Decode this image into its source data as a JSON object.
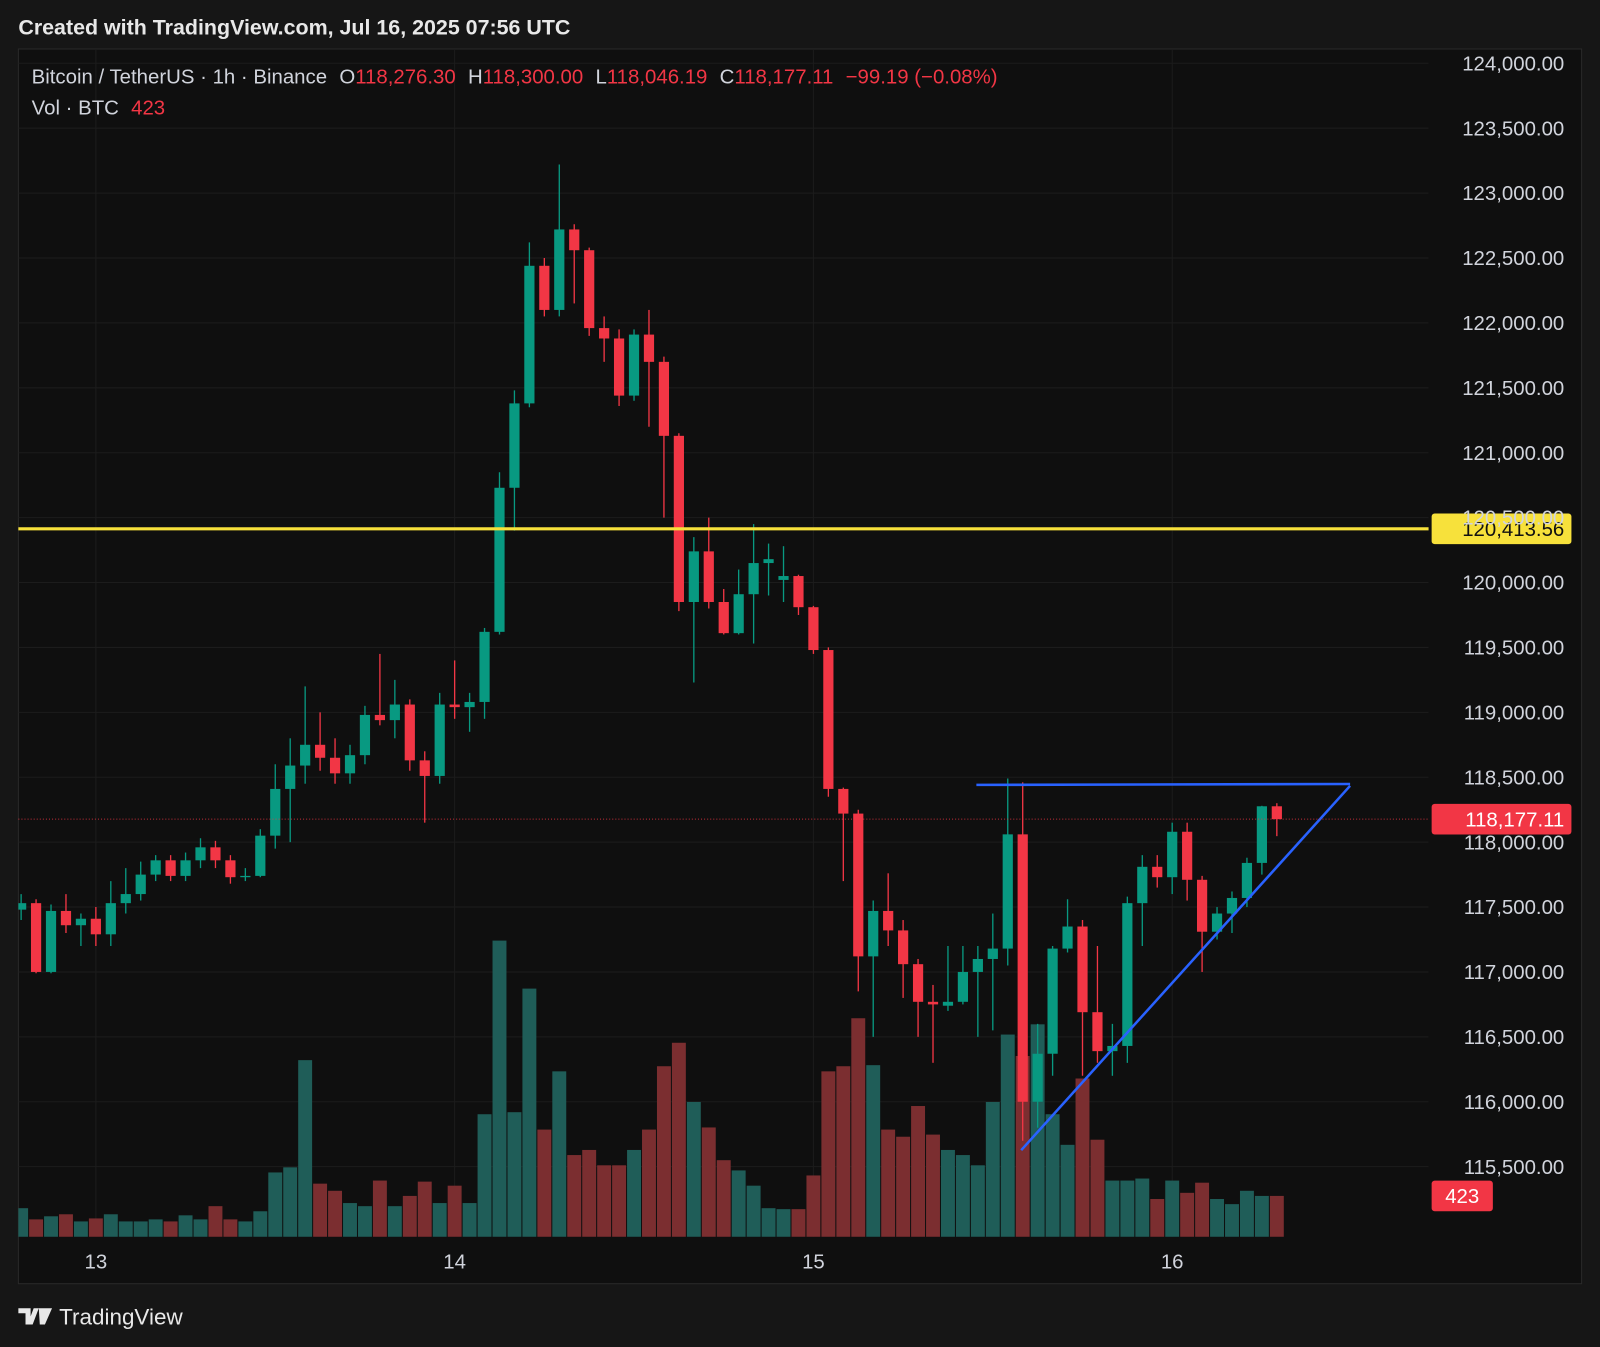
{
  "header": "Created with TradingView.com, Jul 16, 2025 07:56 UTC",
  "footer": "TradingView",
  "chart_data": {
    "type": "candlestick",
    "title": "Bitcoin / TetherUS · 1h · Binance",
    "legend": {
      "open_key": "O",
      "open": "118,276.30",
      "high_key": "H",
      "high": "118,300.00",
      "low_key": "L",
      "low": "118,046.19",
      "close_key": "C",
      "close": "118,177.11",
      "change": "−99.19 (−0.08%)",
      "volume_key": "Vol · BTC",
      "volume": "423"
    },
    "categories": [
      null,
      null,
      null,
      null,
      null,
      "13",
      null,
      null,
      null,
      null,
      null,
      null,
      null,
      null,
      null,
      null,
      null,
      null,
      null,
      null,
      null,
      null,
      null,
      null,
      null,
      null,
      null,
      null,
      null,
      "14",
      null,
      null,
      null,
      null,
      null,
      null,
      null,
      null,
      null,
      null,
      null,
      null,
      null,
      null,
      null,
      null,
      null,
      null,
      null,
      null,
      null,
      null,
      null,
      "15",
      null,
      null,
      null,
      null,
      null,
      null,
      null,
      null,
      null,
      null,
      null,
      null,
      null,
      null,
      null,
      null,
      null,
      null,
      null,
      null,
      null,
      null,
      null,
      "16",
      null,
      null,
      null,
      null,
      null,
      null,
      null
    ],
    "open": [
      117480,
      117530,
      117000,
      117470,
      117360,
      117410,
      117290,
      117530,
      117600,
      117750,
      117860,
      117740,
      117860,
      117960,
      117860,
      117730,
      117740,
      118050,
      118410,
      118590,
      118750,
      118650,
      118530,
      118670,
      118980,
      118940,
      119060,
      118630,
      118510,
      119060,
      119040,
      119080,
      119620,
      120730,
      121380,
      122440,
      122100,
      122720,
      122560,
      121960,
      121880,
      121440,
      121910,
      121700,
      121130,
      119850,
      120240,
      119850,
      119610,
      119910,
      120150,
      120020,
      120050,
      119810,
      119480,
      118410,
      118220,
      117120,
      117470,
      117320,
      117060,
      116770,
      116740,
      116770,
      117000,
      117100,
      117180,
      118060,
      116000,
      116370,
      117180,
      117350,
      116690,
      116390,
      116430,
      117530,
      117810,
      117730,
      118080,
      117710,
      117310,
      117450,
      117570,
      117840,
      118276.3
    ],
    "high": [
      117600,
      117560,
      117520,
      117600,
      117450,
      117500,
      117700,
      117800,
      117850,
      117900,
      117900,
      117920,
      118030,
      118010,
      117900,
      117800,
      118100,
      118600,
      118800,
      119200,
      119000,
      118800,
      118750,
      119050,
      119450,
      119250,
      119100,
      118700,
      119150,
      119400,
      119150,
      119650,
      120850,
      121480,
      122620,
      122500,
      123220,
      122760,
      122580,
      122050,
      121950,
      121950,
      122100,
      121740,
      121150,
      120350,
      120500,
      119950,
      120100,
      120450,
      120300,
      120280,
      120060,
      119820,
      119500,
      118420,
      118250,
      117550,
      117760,
      117400,
      117100,
      116900,
      117200,
      117200,
      117200,
      117450,
      118490,
      118460,
      116600,
      117200,
      117560,
      117400,
      117200,
      116600,
      117580,
      117900,
      117900,
      118150,
      118150,
      117740,
      117500,
      117620,
      117880,
      118280,
      118300
    ],
    "low": [
      117400,
      116990,
      116990,
      117300,
      117200,
      117200,
      117200,
      117450,
      117550,
      117700,
      117700,
      117700,
      117800,
      117800,
      117680,
      117700,
      117730,
      117950,
      118000,
      118450,
      118550,
      118450,
      118450,
      118600,
      118900,
      118800,
      118550,
      118150,
      118450,
      118950,
      118850,
      118950,
      119600,
      120400,
      121350,
      122050,
      122050,
      122150,
      121900,
      121700,
      121360,
      121400,
      121200,
      120500,
      119780,
      119230,
      119800,
      119600,
      119600,
      119530,
      119900,
      119850,
      119750,
      119450,
      118350,
      117700,
      116850,
      116500,
      117200,
      116800,
      116500,
      116300,
      116700,
      116750,
      116500,
      116550,
      117050,
      115700,
      115800,
      116200,
      117150,
      116200,
      116300,
      116200,
      116300,
      117200,
      117650,
      117600,
      117550,
      117000,
      117250,
      117300,
      117500,
      117750,
      118046.19
    ],
    "close": [
      117530,
      117000,
      117470,
      117360,
      117410,
      117290,
      117530,
      117600,
      117750,
      117860,
      117740,
      117860,
      117960,
      117860,
      117730,
      117740,
      118050,
      118410,
      118590,
      118750,
      118650,
      118530,
      118670,
      118980,
      118940,
      119060,
      118630,
      118510,
      119060,
      119040,
      119080,
      119620,
      120730,
      121380,
      122440,
      122100,
      122720,
      122560,
      121960,
      121880,
      121440,
      121910,
      121700,
      121130,
      119850,
      120240,
      119850,
      119610,
      119910,
      120150,
      120180,
      120050,
      119810,
      119480,
      118410,
      118220,
      117120,
      117470,
      117320,
      117060,
      116770,
      116750,
      116770,
      117000,
      117100,
      117180,
      118060,
      116000,
      116370,
      117180,
      117350,
      116690,
      116390,
      116430,
      117530,
      117810,
      117730,
      118080,
      117710,
      117310,
      117450,
      117570,
      117840,
      118276.3,
      118177.11
    ],
    "volume": [
      296,
      180,
      212,
      233,
      159,
      190,
      233,
      159,
      159,
      180,
      159,
      222,
      180,
      317,
      180,
      159,
      264,
      666,
      719,
      1829,
      550,
      476,
      349,
      317,
      582,
      317,
      423,
      571,
      349,
      529,
      349,
      1269,
      3067,
      1290,
      2570,
      1110,
      1713,
      846,
      899,
      740,
      740,
      899,
      1110,
      1766,
      2009,
      1396,
      1132,
      793,
      687,
      529,
      296,
      286,
      286,
      635,
      1713,
      1766,
      2263,
      1777,
      1110,
      1036,
      1354,
      1058,
      899,
      846,
      740,
      1396,
      2094,
      1872,
      2200,
      1269,
      952,
      1639,
      1005,
      582,
      582,
      603,
      391,
      582,
      455,
      560,
      391,
      338,
      476,
      423,
      423
    ],
    "ylim": [
      114960,
      124110
    ],
    "yticks": [
      {
        "value": 115500,
        "label": "115,500.00"
      },
      {
        "value": 116000,
        "label": "116,000.00"
      },
      {
        "value": 116500,
        "label": "116,500.00"
      },
      {
        "value": 117000,
        "label": "117,000.00"
      },
      {
        "value": 117500,
        "label": "117,500.00"
      },
      {
        "value": 118000,
        "label": "118,000.00"
      },
      {
        "value": 118500,
        "label": "118,500.00"
      },
      {
        "value": 119000,
        "label": "119,000.00"
      },
      {
        "value": 119500,
        "label": "119,500.00"
      },
      {
        "value": 120000,
        "label": "120,000.00"
      },
      {
        "value": 120500,
        "label": "120,500.00"
      },
      {
        "value": 121000,
        "label": "121,000.00"
      },
      {
        "value": 121500,
        "label": "121,500.00"
      },
      {
        "value": 122000,
        "label": "122,000.00"
      },
      {
        "value": 122500,
        "label": "122,500.00"
      },
      {
        "value": 123000,
        "label": "123,000.00"
      },
      {
        "value": 123500,
        "label": "123,500.00"
      },
      {
        "value": 124000,
        "label": "124,000.00"
      }
    ],
    "y2lim": [
      0,
      12300
    ],
    "grid": true,
    "up_color": "#089981",
    "down_color": "#f23645",
    "volume_up_color": "#1f5d58",
    "volume_down_color": "#7b2e30",
    "hlines": [
      {
        "value": 120413.56,
        "label": "120,413.56",
        "color": "#f7e13b"
      }
    ],
    "price_line": {
      "value": 118177.11,
      "label": "118,177.11",
      "color": "#f23645"
    },
    "volume_label": {
      "value": 423,
      "label": "423",
      "color": "#f23645"
    },
    "trendlines": [
      {
        "color": "#2962ff",
        "points": [
          [
            63.9,
            118441
          ],
          [
            88.9,
            118448
          ]
        ]
      },
      {
        "color": "#2962ff",
        "points": [
          [
            66.9,
            115627
          ],
          [
            88.9,
            118434
          ]
        ]
      }
    ]
  }
}
